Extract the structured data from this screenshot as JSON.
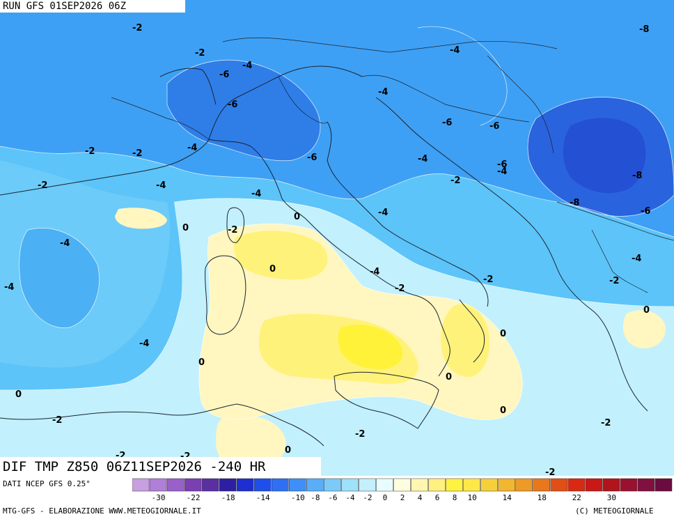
{
  "header": {
    "run": "RUN GFS 01SEP2026 06Z"
  },
  "field": {
    "title": "DIF TMP Z850 06Z11SEP2026 -240 HR"
  },
  "footer": {
    "source": "DATI NCEP GFS 0.25°",
    "credit": "MTG-GFS - ELABORAZIONE WWW.METEOGIORNALE.IT",
    "copyright": "(C) METEOGIORNALE"
  },
  "map_labels": [
    "-2",
    "-8",
    "-2",
    "-4",
    "-6",
    "-4",
    "-4",
    "-6",
    "-2",
    "-4",
    "-2",
    "-6",
    "-6",
    "-4",
    "-6",
    "-2",
    "-4",
    "-6",
    "-8",
    "-2",
    "-4",
    "-8",
    "-6",
    "0",
    "-2",
    "0",
    "-4",
    "-4",
    "-4",
    "-2",
    "-2",
    "-4",
    "0",
    "-4",
    "0",
    "0",
    "0",
    "-2",
    "-2",
    "-2",
    "0",
    "0",
    "-2",
    "-2",
    "-2",
    "-2"
  ],
  "colorbar": {
    "colors": [
      "#c7a0e0",
      "#b080d8",
      "#9860c8",
      "#7a3fb0",
      "#5a2fa0",
      "#2d1fa0",
      "#1e2fd0",
      "#1f4fe8",
      "#2f6ff2",
      "#3f8ff7",
      "#5aaef8",
      "#7ccaf8",
      "#9fe0fb",
      "#c4f0fd",
      "#e6fcff",
      "#fffde0",
      "#fff7b0",
      "#fff080",
      "#fff240",
      "#fde84a",
      "#f6d03c",
      "#f2b630",
      "#ee9a28",
      "#e8781e",
      "#e05016",
      "#d82a12",
      "#c81818",
      "#b0141c",
      "#981230",
      "#801040",
      "#6a0c40"
    ],
    "ticks": [
      "-30",
      "-22",
      "-18",
      "-14",
      "-10",
      "-8",
      "-6",
      "-4",
      "-2",
      "0",
      "2",
      "4",
      "6",
      "8",
      "10",
      "14",
      "18",
      "22",
      "30"
    ]
  },
  "colors": {
    "deep_blue": "#2f6fe6",
    "blue": "#3e92f2",
    "light_blue": "#5cb8f6",
    "cyan": "#7fd6fa",
    "pale_cyan": "#b8ecfc",
    "pale": "#e2fbff",
    "pale_yellow": "#fff6c0",
    "yellow": "#fff27a",
    "bright_yellow": "#fff238"
  }
}
